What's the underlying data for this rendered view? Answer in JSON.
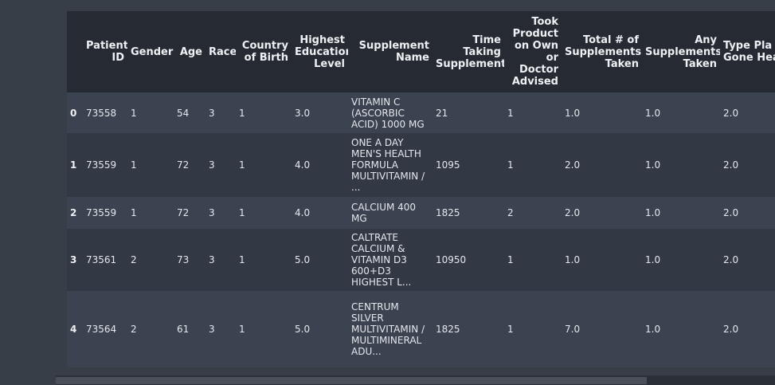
{
  "table": {
    "columns": [
      "Patient ID",
      "Gender",
      "Age",
      "Race",
      "Country of Birth",
      "Highest Education Level",
      "Supplement Name",
      "Time Taking Supplement",
      "Took Product on Own or Doctor Advised",
      "Total # of Supplements Taken",
      "Any Supplements Taken",
      "Type Pla Gone Healthc"
    ],
    "rows": [
      {
        "index": "0",
        "cells": [
          "73558",
          "1",
          "54",
          "3",
          "1",
          "3.0",
          "VITAMIN C (ASCORBIC ACID) 1000 MG",
          "21",
          "1",
          "1.0",
          "1.0",
          "2.0"
        ]
      },
      {
        "index": "1",
        "cells": [
          "73559",
          "1",
          "72",
          "3",
          "1",
          "4.0",
          "ONE A DAY MEN'S HEALTH FORMULA MULTIVITAMIN / ...",
          "1095",
          "1",
          "2.0",
          "1.0",
          "2.0"
        ]
      },
      {
        "index": "2",
        "cells": [
          "73559",
          "1",
          "72",
          "3",
          "1",
          "4.0",
          "CALCIUM 400 MG",
          "1825",
          "2",
          "2.0",
          "1.0",
          "2.0"
        ]
      },
      {
        "index": "3",
        "cells": [
          "73561",
          "2",
          "73",
          "3",
          "1",
          "5.0",
          "CALTRATE CALCIUM & VITAMIN D3 600+D3 HIGHEST L...",
          "10950",
          "1",
          "1.0",
          "1.0",
          "2.0"
        ]
      },
      {
        "index": "4",
        "cells": [
          "73564",
          "2",
          "61",
          "3",
          "1",
          "5.0",
          "CENTRUM SILVER MULTIVITAMIN / MULTIMINERAL ADU...",
          "1825",
          "1",
          "7.0",
          "1.0",
          "2.0"
        ]
      }
    ]
  },
  "colors": {
    "page_background": "#383e48",
    "header_background": "#262b33",
    "row_odd": "#3c4350",
    "row_even": "#333944",
    "scrollbar_thumb": "#4a505a"
  }
}
